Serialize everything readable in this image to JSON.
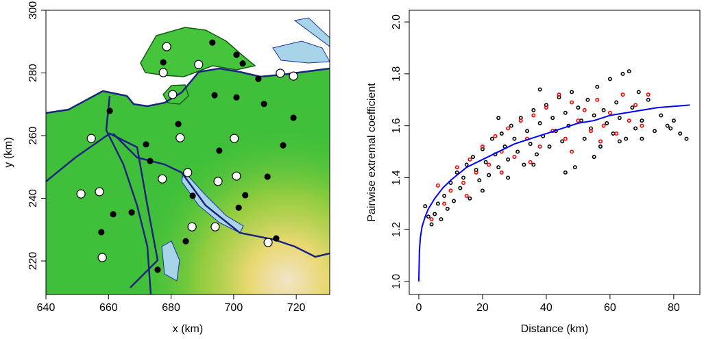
{
  "chart_data": [
    {
      "type": "scatter",
      "xlabel": "x (km)",
      "ylabel": "y (km)",
      "xlim": [
        640,
        730.7
      ],
      "ylim": [
        209.3,
        300
      ],
      "xticks": [
        640,
        660,
        680,
        700,
        720
      ],
      "yticks": [
        220,
        240,
        260,
        280,
        300
      ],
      "series": [
        {
          "color": "#000000",
          "marker_size": 4,
          "x": [
            677.5,
            693.2,
            700.9,
            702.9,
            707.9,
            693.9,
            700.9,
            709.7,
            660.4,
            682.3,
            719.1,
            672.0,
            673.3,
            695.4,
            715.8,
            710.8,
            703.7,
            701.6,
            686.9,
            667.4,
            661.5,
            657.7,
            684.7,
            713.6,
            675.7
          ],
          "values": [
            283.4,
            289.7,
            285.8,
            283.0,
            278.1,
            272.9,
            272.2,
            270.1,
            267.9,
            263.7,
            265.7,
            257.2,
            251.9,
            255.2,
            256.9,
            246.9,
            241.0,
            237.0,
            240.8,
            235.5,
            234.9,
            229.2,
            226.3,
            227.2,
            217.2
          ]
        },
        {
          "color": "#ffffff",
          "marker_size": 6,
          "x": [
            678.6,
            677.5,
            688.8,
            680.5,
            714.9,
            719.1,
            654.5,
            682.9,
            700.2,
            685.3,
            677.2,
            695.0,
            700.9,
            651.2,
            657.1,
            686.7,
            694.1,
            711.0,
            658.0
          ],
          "values": [
            288.4,
            280.1,
            282.7,
            273.1,
            279.9,
            279.0,
            259.1,
            259.3,
            259.1,
            248.2,
            246.2,
            245.4,
            247.1,
            241.4,
            242.1,
            230.9,
            230.9,
            225.9,
            221.1
          ]
        }
      ]
    },
    {
      "type": "scatter",
      "xlabel": "Distance (km)",
      "ylabel": "Pairwise extremal coefficient",
      "xlim": [
        -3,
        88.2
      ],
      "ylim": [
        0.95,
        2.045
      ],
      "xticks": [
        0,
        20,
        40,
        60,
        80
      ],
      "yticks": [
        {
          "value": 1,
          "label": "1.0"
        },
        1.2,
        1.4,
        1.6,
        1.8,
        {
          "value": 2,
          "label": "2.0"
        }
      ],
      "series": [
        {
          "color": "#000000",
          "mode": "points",
          "x": [
            4,
            5,
            6,
            7,
            8,
            9,
            10,
            11,
            12,
            13,
            14,
            15,
            16,
            17,
            18,
            19,
            20,
            21,
            22,
            23,
            24,
            25,
            26,
            27,
            28,
            29,
            30,
            31,
            32,
            33,
            34,
            35,
            36,
            37,
            38,
            39,
            40,
            41,
            42,
            43,
            44,
            45,
            46,
            47,
            48,
            49,
            50,
            51,
            52,
            53,
            54,
            55,
            56,
            57,
            58,
            59,
            60,
            61,
            62,
            63,
            64,
            65,
            66,
            67,
            68,
            69,
            70,
            72,
            74,
            76,
            78,
            80,
            82,
            84,
            2,
            3,
            20,
            28,
            36,
            46,
            25,
            38,
            55,
            63,
            70,
            79
          ],
          "values": [
            1.22,
            1.26,
            1.3,
            1.24,
            1.33,
            1.28,
            1.38,
            1.31,
            1.42,
            1.36,
            1.4,
            1.45,
            1.32,
            1.48,
            1.43,
            1.39,
            1.51,
            1.46,
            1.41,
            1.55,
            1.49,
            1.44,
            1.57,
            1.52,
            1.47,
            1.6,
            1.55,
            1.5,
            1.63,
            1.45,
            1.58,
            1.53,
            1.66,
            1.49,
            1.61,
            1.56,
            1.68,
            1.52,
            1.63,
            1.58,
            1.71,
            1.54,
            1.65,
            1.6,
            1.73,
            1.44,
            1.67,
            1.62,
            1.55,
            1.7,
            1.59,
            1.64,
            1.75,
            1.52,
            1.66,
            1.61,
            1.78,
            1.57,
            1.69,
            1.63,
            1.8,
            1.55,
            1.81,
            1.67,
            1.59,
            1.73,
            1.62,
            1.7,
            1.58,
            1.64,
            1.6,
            1.62,
            1.57,
            1.55,
            1.29,
            1.25,
            1.35,
            1.4,
            1.45,
            1.42,
            1.63,
            1.74,
            1.48,
            1.54,
            1.55,
            1.59
          ]
        },
        {
          "color": "#ff0000",
          "mode": "points",
          "x": [
            4,
            6,
            8,
            10,
            12,
            14,
            16,
            18,
            20,
            22,
            24,
            26,
            28,
            30,
            32,
            34,
            36,
            38,
            40,
            42,
            44,
            46,
            48,
            50,
            52,
            54,
            56,
            58,
            60,
            62,
            64,
            66,
            68,
            70,
            72,
            48,
            35,
            26,
            15,
            57
          ],
          "values": [
            1.24,
            1.37,
            1.3,
            1.35,
            1.44,
            1.38,
            1.47,
            1.42,
            1.52,
            1.45,
            1.56,
            1.5,
            1.59,
            1.48,
            1.62,
            1.55,
            1.64,
            1.52,
            1.67,
            1.58,
            1.72,
            1.55,
            1.69,
            1.62,
            1.66,
            1.58,
            1.7,
            1.6,
            1.65,
            1.57,
            1.72,
            1.62,
            1.68,
            1.6,
            1.72,
            1.5,
            1.46,
            1.42,
            1.33,
            1.54
          ]
        },
        {
          "color": "#0000ff",
          "mode": "line",
          "x": [
            0,
            0.2,
            0.5,
            1,
            2,
            3,
            5,
            7.5,
            10,
            15,
            20,
            25,
            30,
            35,
            40,
            45,
            50,
            55,
            60,
            65,
            70,
            75,
            80,
            85
          ],
          "values": [
            1.0,
            1.12,
            1.17,
            1.21,
            1.25,
            1.28,
            1.32,
            1.36,
            1.39,
            1.44,
            1.47,
            1.5,
            1.53,
            1.55,
            1.57,
            1.59,
            1.61,
            1.62,
            1.64,
            1.65,
            1.66,
            1.67,
            1.675,
            1.68
          ]
        }
      ]
    }
  ]
}
